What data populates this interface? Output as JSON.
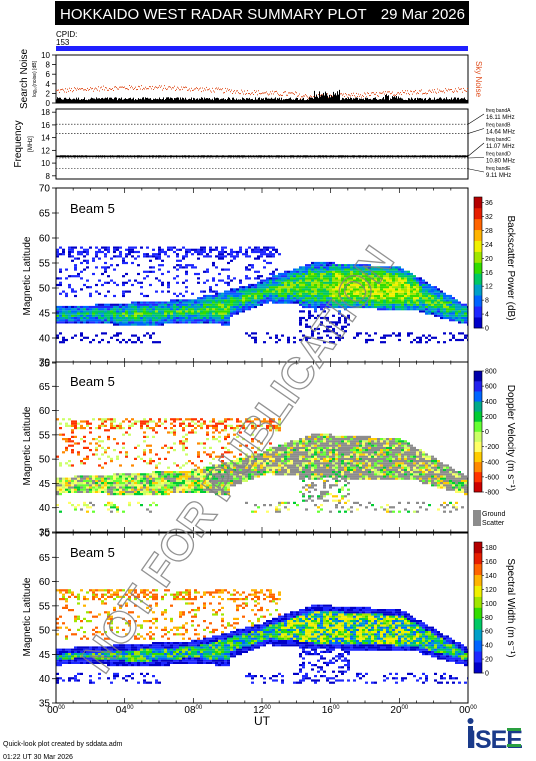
{
  "header": {
    "title": "HOKKAIDO WEST RADAR SUMMARY PLOT",
    "date": "29 Mar 2026",
    "cpid_label": "CPID:",
    "cpid_value": "153"
  },
  "colors": {
    "header_bg": "#000000",
    "header_text": "#ffffff",
    "cpid_bar": "#2020ff",
    "sky_noise": "#e05020",
    "search_noise": "#000000",
    "watermark": "#808080",
    "ground_scatter": "#8c8c8c"
  },
  "noise_panel": {
    "ylabel_main": "Search Noise",
    "ylabel_sub": "log₁₀(noise) [dB]",
    "yticks": [
      "0",
      "2",
      "4",
      "6",
      "8",
      "10"
    ],
    "right_label": "Sky Noise"
  },
  "freq_panel": {
    "ylabel_main": "Frequency",
    "ylabel_sub": "[MHz]",
    "yticks": [
      "8",
      "10",
      "12",
      "14",
      "16",
      "18"
    ],
    "bands": [
      {
        "name": "freq bandA",
        "value": "16.11 MHz",
        "mhz": 16.11
      },
      {
        "name": "freq bandB",
        "value": "14.64 MHz",
        "mhz": 14.64
      },
      {
        "name": "freq bandC",
        "value": "11.07 MHz",
        "mhz": 11.07
      },
      {
        "name": "freq bandD",
        "value": "10.80 MHz",
        "mhz": 10.8
      },
      {
        "name": "freq bandE",
        "value": "9.11 MHz",
        "mhz": 9.11
      }
    ]
  },
  "chart_data": [
    {
      "type": "heatmap",
      "panel": "power",
      "beam": "Beam  5",
      "ylabel": "Magnetic Latitude",
      "yticks": [
        "35",
        "40",
        "45",
        "50",
        "55",
        "60",
        "65",
        "70"
      ],
      "ylim": [
        35,
        70
      ],
      "colorbar_label": "Backscatter Power (dB)",
      "colorbar_ticks": [
        "0",
        "4",
        "8",
        "12",
        "16",
        "20",
        "24",
        "28",
        "32",
        "36"
      ],
      "colorbar_colors": [
        "#0000c8",
        "#1e28ff",
        "#0064ff",
        "#00a0c8",
        "#00c864",
        "#32dc00",
        "#a0e600",
        "#f0f000",
        "#ffb400",
        "#ff6400",
        "#e61e00",
        "#b40000"
      ]
    },
    {
      "type": "heatmap",
      "panel": "velocity",
      "beam": "Beam  5",
      "ylabel": "Magnetic Latitude",
      "yticks": [
        "35",
        "40",
        "45",
        "50",
        "55",
        "60",
        "65",
        "70"
      ],
      "ylim": [
        35,
        70
      ],
      "colorbar_label": "Doppler Velocity (m s⁻¹)",
      "colorbar_ticks": [
        "-800",
        "-600",
        "-400",
        "-200",
        "0",
        "200",
        "400",
        "600",
        "800"
      ],
      "colorbar_colors": [
        "#cc0000",
        "#ff3300",
        "#ff8800",
        "#ffcc00",
        "#ffff66",
        "#ccff66",
        "#66ff33",
        "#00cc33",
        "#00aa88",
        "#0066ff",
        "#2222ee",
        "#0000aa"
      ],
      "ground_scatter_label": [
        "Ground",
        "Scatter"
      ]
    },
    {
      "type": "heatmap",
      "panel": "width",
      "beam": "Beam  5",
      "ylabel": "Magnetic Latitude",
      "yticks": [
        "35",
        "40",
        "45",
        "50",
        "55",
        "60",
        "65",
        "70"
      ],
      "ylim": [
        35,
        70
      ],
      "colorbar_label": "Spectral Width (m s⁻¹)",
      "colorbar_ticks": [
        "0",
        "20",
        "40",
        "60",
        "80",
        "100",
        "120",
        "140",
        "160",
        "180"
      ],
      "colorbar_colors": [
        "#0000c8",
        "#1e28ff",
        "#0064ff",
        "#00a0c8",
        "#00c864",
        "#32dc00",
        "#a0e600",
        "#f0f000",
        "#ffb400",
        "#ff6400",
        "#e61e00",
        "#b40000"
      ]
    }
  ],
  "time_axis": {
    "xticks": [
      {
        "h": "00",
        "m": "00"
      },
      {
        "h": "04",
        "m": "00"
      },
      {
        "h": "08",
        "m": "00"
      },
      {
        "h": "12",
        "m": "00"
      },
      {
        "h": "16",
        "m": "00"
      },
      {
        "h": "20",
        "m": "00"
      },
      {
        "h": "00",
        "m": "00"
      }
    ],
    "xlabel": "UT"
  },
  "footer": {
    "line1": "Quick-look plot created by sddata.adm",
    "line2": "01:22 UT 30 Mar 2026",
    "logo": "ISEE"
  },
  "watermark": "NOT FOR PUBLICATION"
}
